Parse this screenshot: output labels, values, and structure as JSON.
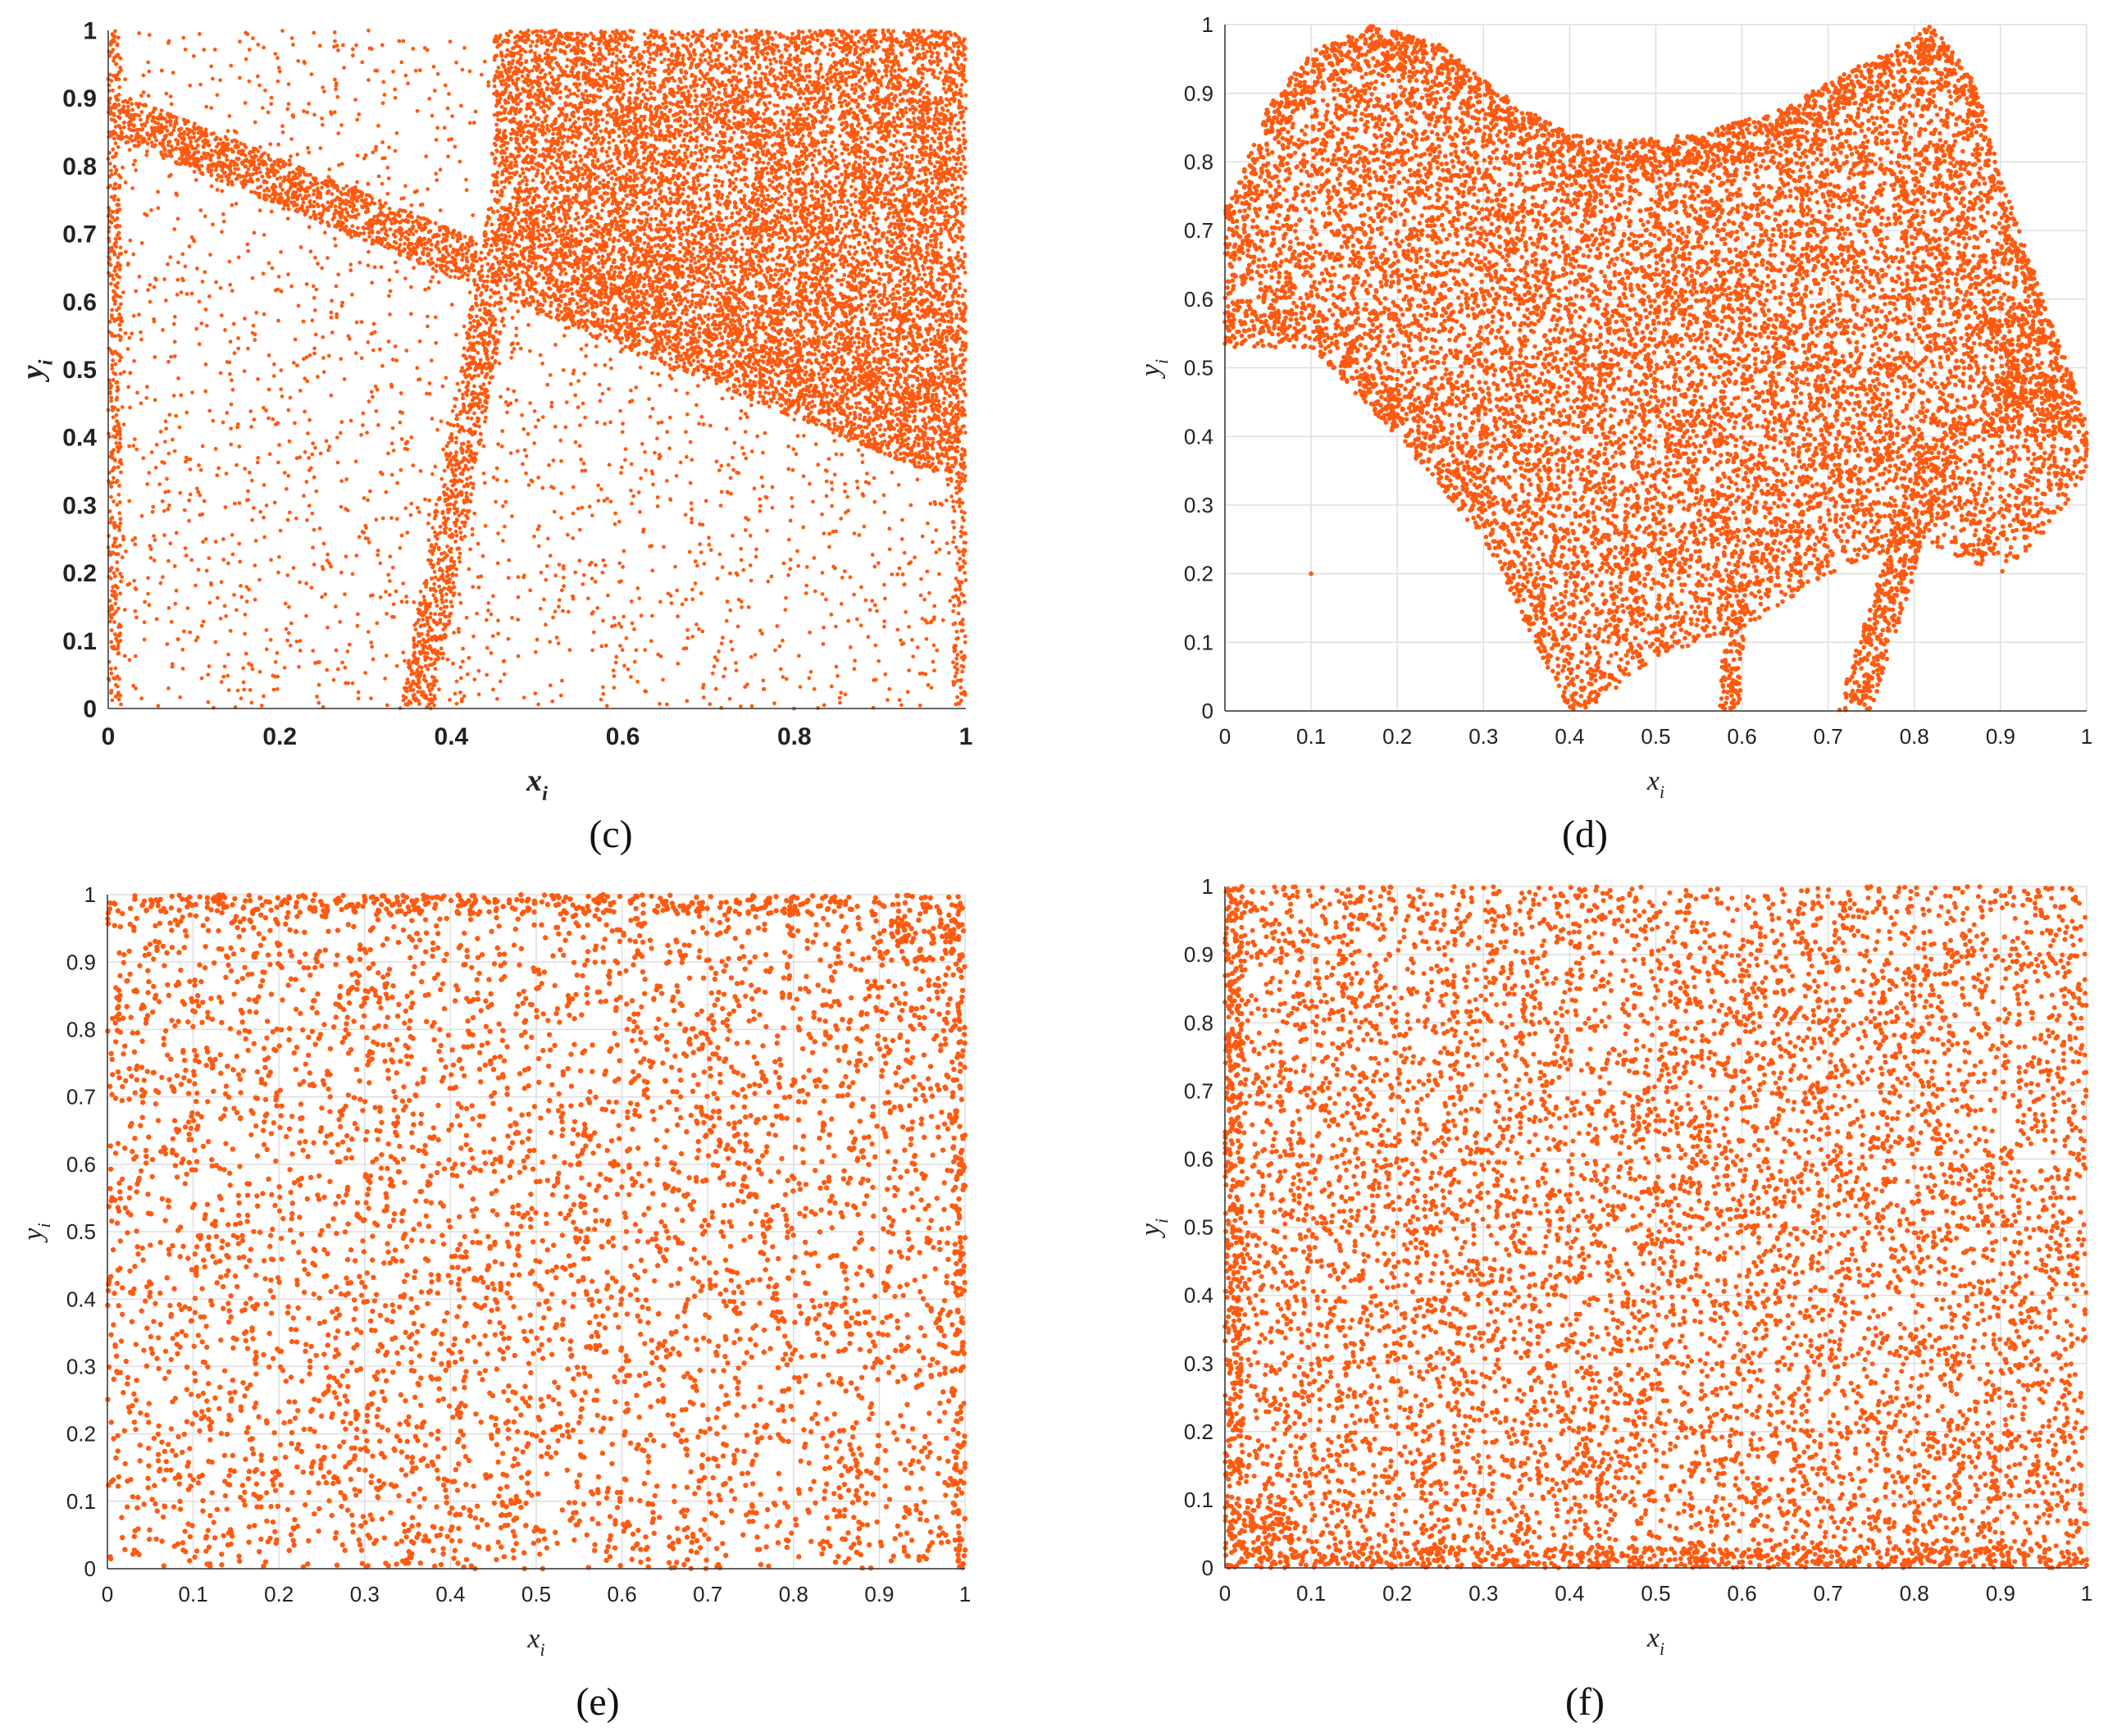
{
  "colors": {
    "marker": "#ff5a10",
    "grid": "#dedede",
    "axis": "#333333",
    "bg": "#ffffff"
  },
  "chart_data": [
    {
      "panel": "c",
      "caption": "(c)",
      "type": "scatter",
      "title": "",
      "xlabel": "x_i",
      "ylabel": "y_i",
      "xlim": [
        0,
        1
      ],
      "ylim": [
        0,
        1
      ],
      "xticks": [
        "0",
        "0.2",
        "0.4",
        "0.6",
        "0.8",
        "1"
      ],
      "yticks": [
        "0",
        "0.1",
        "0.2",
        "0.3",
        "0.4",
        "0.5",
        "0.6",
        "0.7",
        "0.8",
        "0.9",
        "1"
      ],
      "grid": false,
      "label_style": "bold",
      "distribution": "piecewise chaotic map: dense band from (0,0.9) to (1,0.36); dense upper-right region above band for x>0.45; near-vertical dense band from (0.36,0) to (0.5,1); sparse elsewhere; dense edges at x=0 and x=1"
    },
    {
      "panel": "d",
      "caption": "(d)",
      "type": "scatter",
      "title": "",
      "xlabel": "x_i",
      "ylabel": "y_i",
      "xlim": [
        0,
        1
      ],
      "ylim": [
        0,
        1
      ],
      "xticks": [
        "0",
        "0.1",
        "0.2",
        "0.3",
        "0.4",
        "0.5",
        "0.6",
        "0.7",
        "0.8",
        "0.9",
        "1"
      ],
      "yticks": [
        "0",
        "0.1",
        "0.2",
        "0.3",
        "0.4",
        "0.5",
        "0.6",
        "0.7",
        "0.8",
        "0.9",
        "1"
      ],
      "grid": true,
      "label_style": "normal",
      "distribution": "folded strange attractor: upper envelope from (0,0.73) peaking (0.17,1.0), dipping (0.43,0.83), peaking (0.82,1.0), descending to (1,0.42); lower lobes touching y=0 near x=0.42, 0.59, 0.73; isolated point at (0.1,0.2)"
    },
    {
      "panel": "e",
      "caption": "(e)",
      "type": "scatter",
      "title": "",
      "xlabel": "x_i",
      "ylabel": "y_i",
      "xlim": [
        0,
        1
      ],
      "ylim": [
        0,
        1
      ],
      "xticks": [
        "0",
        "0.1",
        "0.2",
        "0.3",
        "0.4",
        "0.5",
        "0.6",
        "0.7",
        "0.8",
        "0.9",
        "1"
      ],
      "yticks": [
        "0",
        "0.1",
        "0.2",
        "0.3",
        "0.4",
        "0.5",
        "0.6",
        "0.7",
        "0.8",
        "0.9",
        "1"
      ],
      "grid": true,
      "label_style": "normal",
      "distribution": "near-uniform scatter with accumulation at y=1 (top edge) and x=1 (right edge)"
    },
    {
      "panel": "f",
      "caption": "(f)",
      "type": "scatter",
      "title": "",
      "xlabel": "x_i",
      "ylabel": "y_i",
      "xlim": [
        0,
        1
      ],
      "ylim": [
        0,
        1
      ],
      "xticks": [
        "0",
        "0.1",
        "0.2",
        "0.3",
        "0.4",
        "0.5",
        "0.6",
        "0.7",
        "0.8",
        "0.9",
        "1"
      ],
      "yticks": [
        "0",
        "0.1",
        "0.2",
        "0.3",
        "0.4",
        "0.5",
        "0.6",
        "0.7",
        "0.8",
        "0.9",
        "1"
      ],
      "grid": true,
      "label_style": "normal",
      "distribution": "near-uniform scatter with strong accumulation at x=0 (left edge) and y=0 (bottom edge)"
    }
  ]
}
